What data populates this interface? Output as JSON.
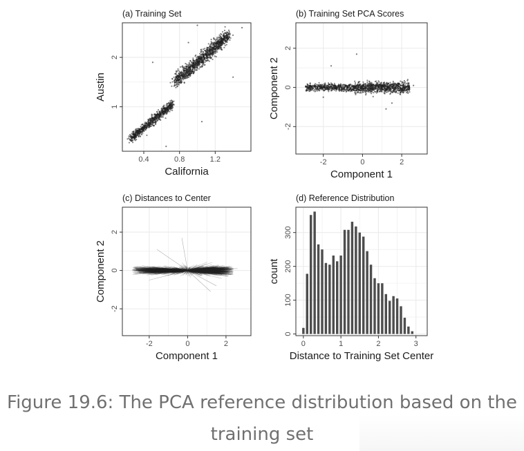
{
  "caption": {
    "line1": "Figure 19.6: The PCA reference distribution based on the",
    "line2": "training set"
  },
  "colors": {
    "points": "#1f1f1f",
    "grid": "#ebebeb",
    "panel_border": "#333333",
    "bars": "#4d4d4d"
  },
  "chart_data": [
    {
      "type": "scatter",
      "title": "(a) Training Set",
      "xlabel": "California",
      "ylabel": "Austin",
      "xlim": [
        0.16,
        1.6
      ],
      "ylim": [
        0.1,
        2.7
      ],
      "xticks": [
        0.4,
        0.8,
        1.2
      ],
      "yticks": [
        1,
        2
      ],
      "grid": true,
      "clusters": [
        {
          "from": [
            0.25,
            0.35
          ],
          "to": [
            0.72,
            1.05
          ],
          "spread": 0.06
        },
        {
          "from": [
            0.75,
            1.5
          ],
          "to": [
            1.35,
            2.45
          ],
          "spread": 0.09
        }
      ]
    },
    {
      "type": "scatter",
      "title": "(b) Training Set PCA Scores",
      "xlabel": "Component 1",
      "ylabel": "Component 2",
      "xlim": [
        -3.4,
        3.3
      ],
      "ylim": [
        -3.4,
        3.3
      ],
      "xticks": [
        -2,
        0,
        2
      ],
      "yticks": [
        -2,
        0,
        2
      ],
      "grid": true,
      "clusters": [
        {
          "x_range": [
            -2.9,
            -0.4
          ],
          "y_center": 0.0,
          "spread": 0.25
        },
        {
          "x_range": [
            -0.4,
            2.4
          ],
          "y_center": 0.0,
          "spread": 0.35
        }
      ]
    },
    {
      "type": "line",
      "title": "(c) Distances to Center",
      "xlabel": "Component 1",
      "ylabel": "Component 2",
      "xlim": [
        -3.4,
        3.3
      ],
      "ylim": [
        -3.4,
        3.3
      ],
      "xticks": [
        -2,
        0,
        2
      ],
      "yticks": [
        -2,
        0,
        2
      ],
      "grid": true,
      "segments_from": [
        0,
        0
      ],
      "clusters": [
        {
          "x_range": [
            -2.9,
            -0.4
          ],
          "y_center": 0.0,
          "spread": 0.25
        },
        {
          "x_range": [
            -0.4,
            2.4
          ],
          "y_center": 0.0,
          "spread": 0.35
        }
      ]
    },
    {
      "type": "bar",
      "title": "(d) Reference Distribution",
      "xlabel": "Distance to Training Set Center",
      "ylabel": "count",
      "xlim": [
        -0.2,
        3.3
      ],
      "ylim": [
        -5,
        375
      ],
      "xticks": [
        0,
        1,
        2,
        3
      ],
      "yticks": [
        0,
        100,
        200,
        300
      ],
      "grid": true,
      "bin_width": 0.1,
      "bin_centers": [
        0.0,
        0.1,
        0.2,
        0.3,
        0.4,
        0.5,
        0.6,
        0.7,
        0.8,
        0.9,
        1.0,
        1.1,
        1.2,
        1.3,
        1.4,
        1.5,
        1.6,
        1.7,
        1.8,
        1.9,
        2.0,
        2.1,
        2.2,
        2.3,
        2.4,
        2.5,
        2.6,
        2.7,
        2.8,
        2.9
      ],
      "values": [
        18,
        178,
        352,
        362,
        265,
        250,
        210,
        205,
        232,
        215,
        232,
        308,
        308,
        332,
        318,
        300,
        288,
        245,
        205,
        165,
        150,
        150,
        118,
        98,
        112,
        105,
        82,
        48,
        22,
        8
      ]
    }
  ]
}
